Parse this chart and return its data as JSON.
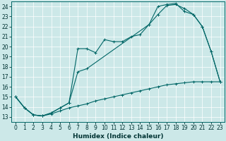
{
  "background_color": "#cce8e8",
  "grid_color": "#ffffff",
  "line_color": "#006666",
  "xlabel": "Humidex (Indice chaleur)",
  "xlim": [
    -0.5,
    23.5
  ],
  "ylim": [
    12.5,
    24.5
  ],
  "xticks": [
    0,
    1,
    2,
    3,
    4,
    5,
    6,
    7,
    8,
    9,
    10,
    11,
    12,
    13,
    14,
    15,
    16,
    17,
    18,
    19,
    20,
    21,
    22,
    23
  ],
  "yticks": [
    13,
    14,
    15,
    16,
    17,
    18,
    19,
    20,
    21,
    22,
    23,
    24
  ],
  "tick_fontsize": 5.5,
  "xlabel_fontsize": 6.5,
  "lw": 0.8,
  "ms": 2.5,
  "line1": {
    "x": [
      0,
      1,
      2,
      3,
      4,
      5,
      6,
      7,
      8,
      9,
      10,
      11,
      12,
      13,
      14,
      15,
      16,
      17,
      18,
      19,
      20,
      21,
      22,
      23
    ],
    "y": [
      15.0,
      13.9,
      13.2,
      13.1,
      13.3,
      13.6,
      13.9,
      14.1,
      14.3,
      14.6,
      14.8,
      15.0,
      15.2,
      15.4,
      15.6,
      15.8,
      16.0,
      16.2,
      16.3,
      16.4,
      16.5,
      16.5,
      16.5,
      16.5
    ]
  },
  "line2_part1": {
    "x": [
      0,
      1,
      2,
      3,
      4,
      5,
      6,
      7,
      8,
      9,
      10,
      11,
      12,
      13,
      14,
      15,
      16,
      17,
      18,
      19,
      20,
      21
    ],
    "y": [
      15.0,
      13.9,
      13.2,
      13.1,
      13.4,
      13.9,
      14.4,
      19.8,
      19.8,
      19.4,
      20.7,
      20.5,
      20.5,
      21.0,
      21.2,
      22.2,
      23.2,
      24.1,
      24.2,
      23.8,
      23.2,
      22.0
    ]
  },
  "line2_part2": {
    "x": [
      21,
      22,
      23
    ],
    "y": [
      22.0,
      19.5,
      16.5
    ]
  },
  "line3": {
    "x": [
      0,
      1,
      2,
      3,
      4,
      5,
      6,
      7,
      8,
      15,
      16,
      17,
      18,
      19,
      20,
      21,
      22,
      23
    ],
    "y": [
      15.0,
      13.9,
      13.2,
      13.1,
      13.4,
      13.9,
      14.4,
      17.5,
      17.8,
      22.2,
      24.0,
      24.2,
      24.3,
      23.5,
      23.2,
      22.0,
      19.5,
      16.5
    ]
  }
}
